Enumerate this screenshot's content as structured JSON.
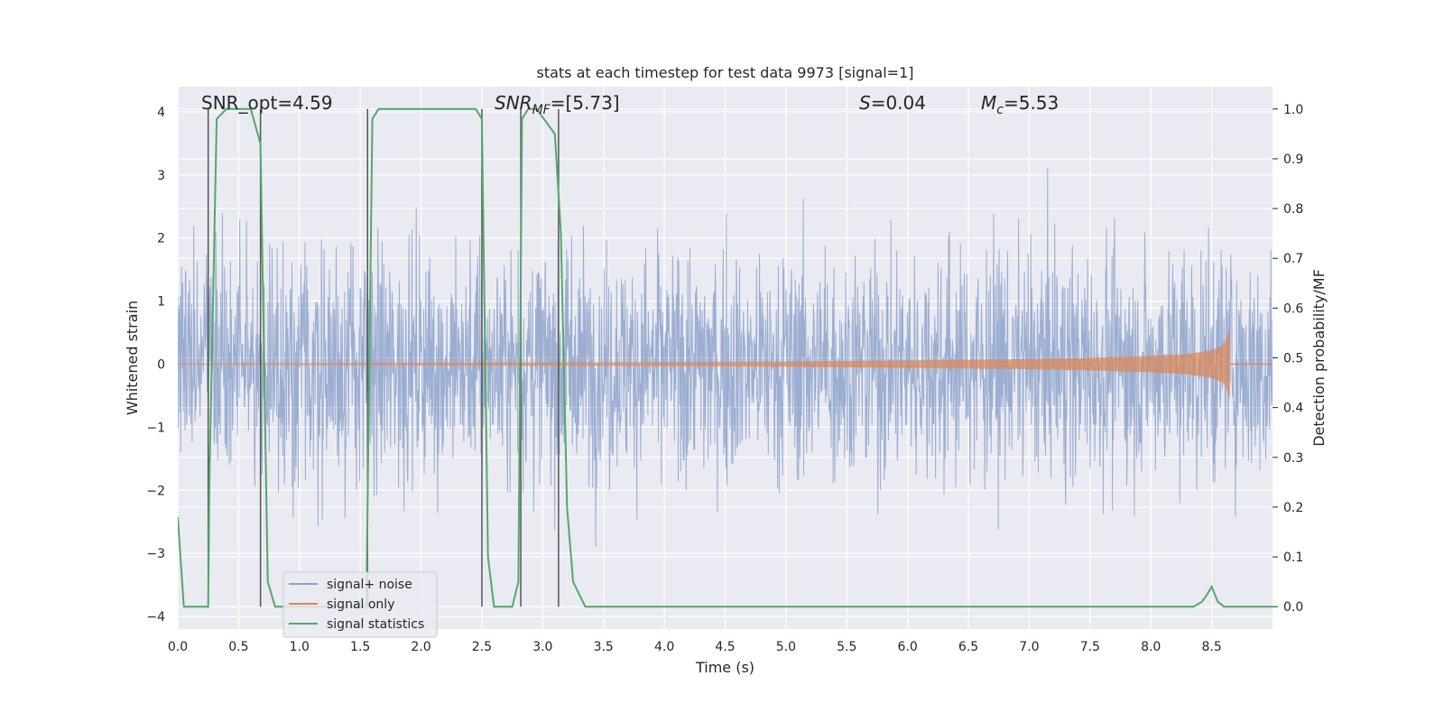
{
  "chart_data": {
    "type": "line",
    "title": "stats at each timestep for test data 9973 [signal=1]",
    "xlabel": "Time (s)",
    "ylabel": "Whitened strain",
    "ylabel_right": "Detection probability/MF",
    "xlim": [
      0.0,
      9.0
    ],
    "ylim": [
      -4.2,
      4.4
    ],
    "ylim_right": [
      -0.045,
      1.045
    ],
    "x_ticks": [
      "0.0",
      "0.5",
      "1.0",
      "1.5",
      "2.0",
      "2.5",
      "3.0",
      "3.5",
      "4.0",
      "4.5",
      "5.0",
      "5.5",
      "6.0",
      "6.5",
      "7.0",
      "7.5",
      "8.0",
      "8.5"
    ],
    "y_ticks": [
      "4",
      "3",
      "2",
      "1",
      "0",
      "−1",
      "−2",
      "−3",
      "−4"
    ],
    "y_ticks_right": [
      "1.0",
      "0.9",
      "0.8",
      "0.7",
      "0.6",
      "0.5",
      "0.4",
      "0.3",
      "0.2",
      "0.1",
      "0.0"
    ],
    "grid": true,
    "legend_position": "lower-left",
    "annotations": {
      "snr_opt": "SNR_opt=4.59",
      "snr_mf_main": "SNR",
      "snr_mf_sub": "MF",
      "snr_mf_value": "=[5.73]",
      "s_main": "S",
      "s_value": "=0.04",
      "mc_main": "M",
      "mc_sub": "c",
      "mc_value": "=5.53"
    },
    "series": [
      {
        "name": "signal+ noise",
        "color": "#4c72b0",
        "description_values": {
          "typical_range": [
            -2.5,
            2.5
          ],
          "max": 3.4,
          "min": -3.8
        }
      },
      {
        "name": "signal only",
        "color": "#dd8452",
        "envelope": {
          "t": [
            0.0,
            2.0,
            4.0,
            5.0,
            6.0,
            7.0,
            7.5,
            8.0,
            8.3,
            8.5,
            8.6,
            8.65
          ],
          "amplitude": [
            0.01,
            0.02,
            0.03,
            0.04,
            0.06,
            0.08,
            0.1,
            0.13,
            0.16,
            0.22,
            0.3,
            0.55
          ]
        }
      },
      {
        "name": "signal statistics",
        "color": "#55a868",
        "x": [
          0.0,
          0.05,
          0.25,
          0.26,
          0.32,
          0.4,
          0.5,
          0.6,
          0.68,
          0.74,
          0.8,
          0.85,
          1.0,
          1.2,
          1.4,
          1.55,
          1.6,
          1.65,
          1.7,
          2.0,
          2.3,
          2.45,
          2.5,
          2.55,
          2.6,
          2.65,
          2.75,
          2.8,
          2.83,
          2.88,
          2.95,
          3.1,
          3.15,
          3.2,
          3.25,
          3.35,
          4.0,
          5.0,
          6.0,
          7.0,
          8.0,
          8.35,
          8.42,
          8.45,
          8.5,
          8.55,
          8.6,
          9.0
        ],
        "y": [
          0.18,
          0.0,
          0.0,
          0.25,
          0.98,
          1.0,
          1.0,
          1.0,
          0.93,
          0.05,
          0.0,
          0.0,
          0.0,
          0.0,
          0.0,
          0.0,
          0.98,
          1.0,
          1.0,
          1.0,
          1.0,
          1.0,
          0.98,
          0.1,
          0.0,
          0.0,
          0.0,
          0.05,
          0.98,
          1.0,
          1.0,
          0.95,
          0.75,
          0.2,
          0.05,
          0.0,
          0.0,
          0.0,
          0.0,
          0.0,
          0.0,
          0.0,
          0.01,
          0.02,
          0.04,
          0.01,
          0.0,
          0.0
        ]
      }
    ],
    "vertical_markers": [
      {
        "x": 0.25,
        "y_from": 0.0,
        "y_to": 1.0
      },
      {
        "x": 0.68,
        "y_from": 0.0,
        "y_to": 1.0
      },
      {
        "x": 1.56,
        "y_from": 0.0,
        "y_to": 1.0
      },
      {
        "x": 2.5,
        "y_from": 0.0,
        "y_to": 1.0
      },
      {
        "x": 2.82,
        "y_from": 0.0,
        "y_to": 1.0
      },
      {
        "x": 3.13,
        "y_from": 0.0,
        "y_to": 1.0
      }
    ],
    "marker_color": "#555555"
  }
}
